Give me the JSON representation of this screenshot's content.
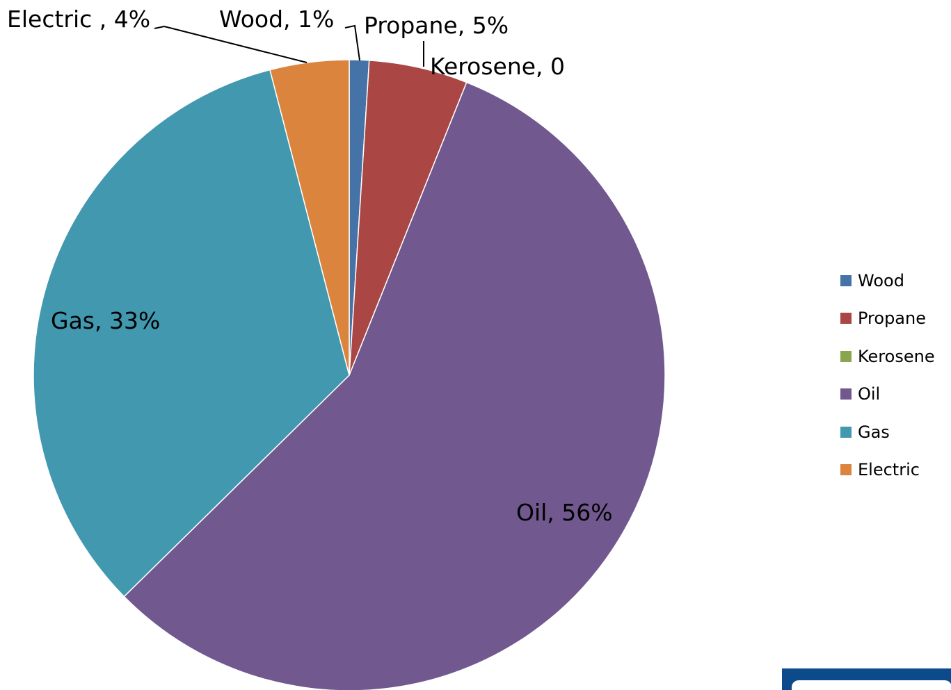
{
  "chart_data": {
    "type": "pie",
    "title": "",
    "slices": [
      {
        "name": "Wood",
        "value": 1,
        "label": "Wood, 1%",
        "color": "#4572a7"
      },
      {
        "name": "Propane",
        "value": 5,
        "label": "Propane, 5%",
        "color": "#aa4643"
      },
      {
        "name": "Kerosene",
        "value": 0,
        "label": "Kerosene, 0",
        "color": "#89a54e"
      },
      {
        "name": "Oil",
        "value": 56,
        "label": "Oil, 56%",
        "color": "#71588f"
      },
      {
        "name": "Gas",
        "value": 33,
        "label": "Gas, 33%",
        "color": "#4198af"
      },
      {
        "name": "Electric",
        "value": 4,
        "label": "Electric , 4%",
        "color": "#db843d"
      }
    ],
    "legend": {
      "placement": "right",
      "items": [
        "Wood",
        "Propane",
        "Kerosene",
        "Oil",
        "Gas",
        "Electric"
      ]
    }
  },
  "logo": {
    "name": "corner-logo"
  }
}
